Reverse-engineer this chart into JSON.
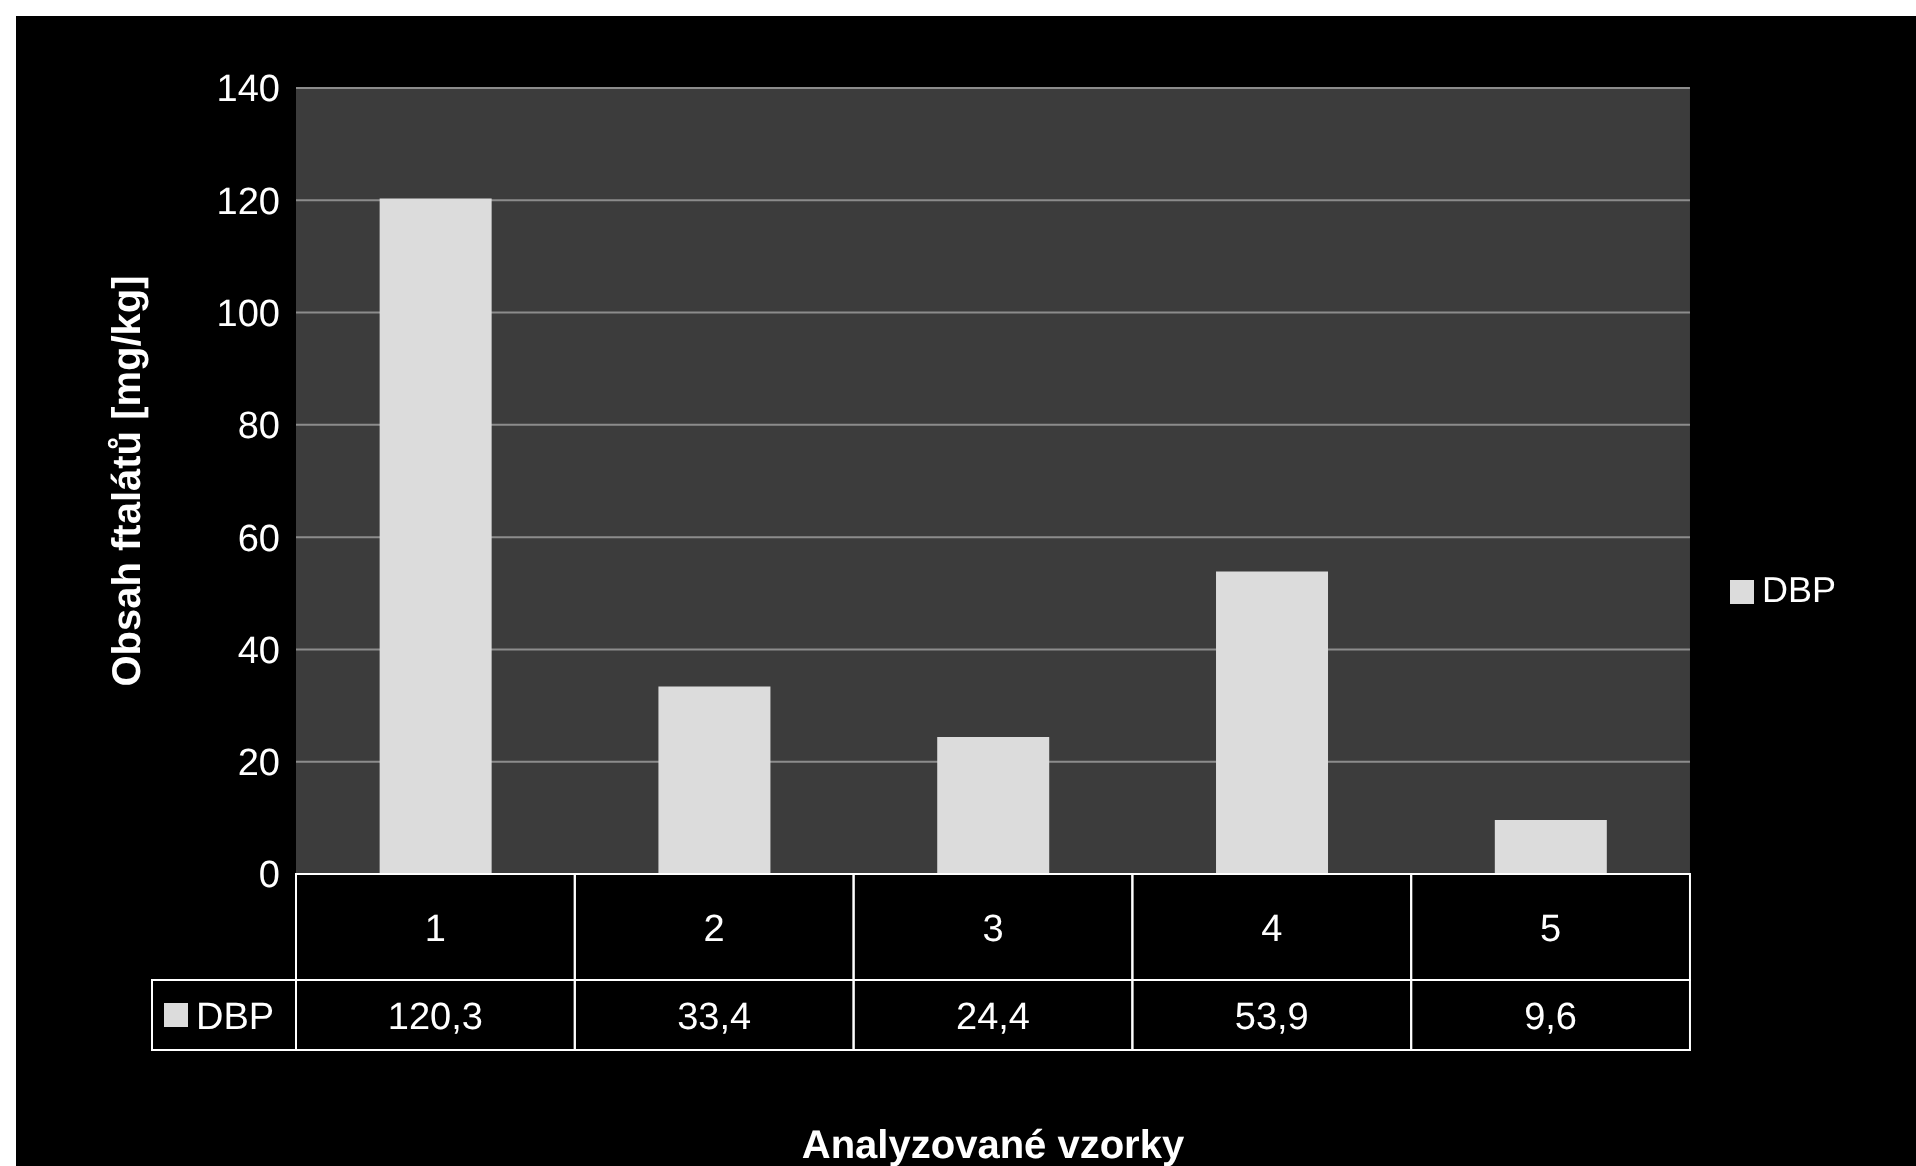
{
  "chart_data": {
    "type": "bar",
    "xlabel": "Analyzované vzorky",
    "ylabel": "Obsah ftalátů [mg/kg]",
    "categories": [
      "1",
      "2",
      "3",
      "4",
      "5"
    ],
    "series": [
      {
        "name": "DBP",
        "color": "#dcdcdc",
        "values": [
          120.3,
          33.4,
          24.4,
          53.9,
          9.6
        ],
        "value_labels": [
          "120,3",
          "33,4",
          "24,4",
          "53,9",
          "9,6"
        ]
      }
    ],
    "ylim": [
      0,
      140
    ],
    "yticks": [
      0,
      20,
      40,
      60,
      80,
      100,
      120,
      140
    ],
    "grid": "y",
    "legend": "right"
  }
}
